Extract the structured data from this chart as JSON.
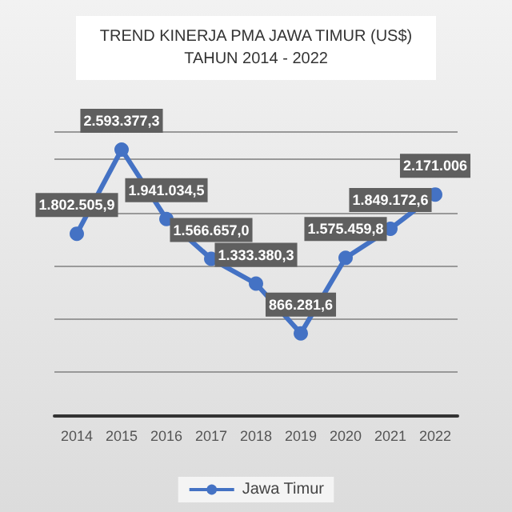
{
  "chart_data": {
    "type": "line",
    "title": "TREND KINERJA PMA JAWA TIMUR (US$)",
    "subtitle": "TAHUN 2014 - 2022",
    "categories": [
      "2014",
      "2015",
      "2016",
      "2017",
      "2018",
      "2019",
      "2020",
      "2021",
      "2022"
    ],
    "series": [
      {
        "name": "Jawa Timur",
        "color": "#4472c4",
        "values": [
          1802505.9,
          2593377.3,
          1941034.5,
          1566657.0,
          1333380.3,
          866281.6,
          1575459.8,
          1849172.6,
          2171006
        ],
        "value_labels": [
          "1.802.505,9",
          "2.593.377,3",
          "1.941.034,5",
          "1.566.657,0",
          "1.333.380,3",
          "866.281,6",
          "1.575.459,8",
          "1.849.172,6",
          "2.171.006"
        ]
      }
    ],
    "marker": "circle",
    "grid": "y",
    "legend": "bottom",
    "tick_labels": "x"
  }
}
